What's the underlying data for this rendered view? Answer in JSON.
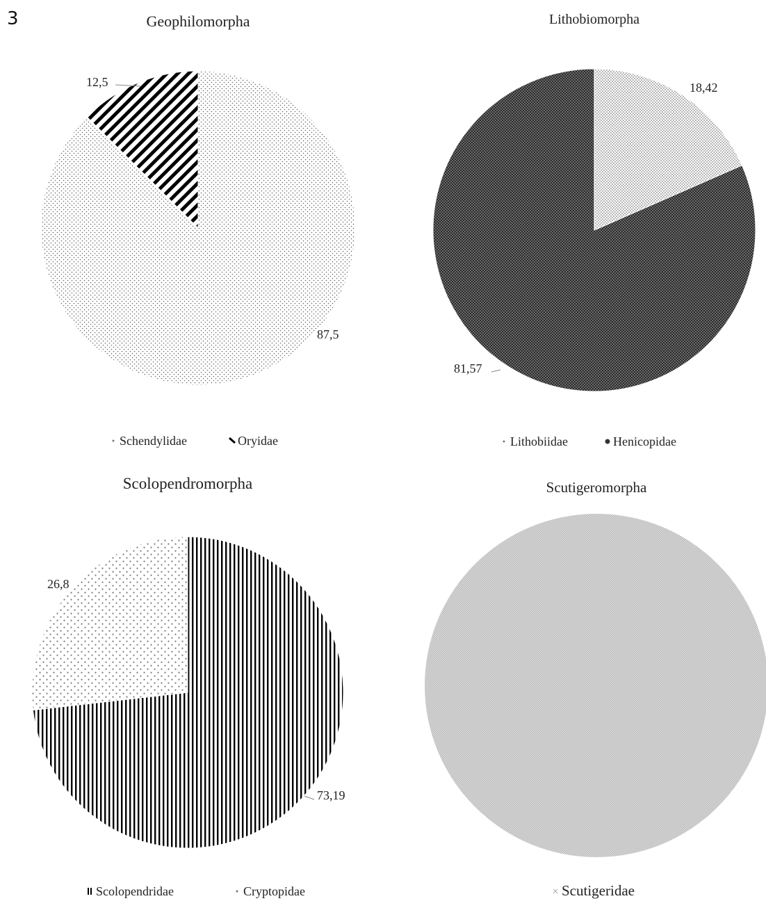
{
  "figure": {
    "panel_label": "3"
  },
  "chart_data": [
    {
      "type": "pie",
      "title": "Geophilomorpha",
      "slices": [
        {
          "label": "Schendylidae",
          "value": 87.5,
          "data_label": "87,5",
          "pattern": "dots-sparse"
        },
        {
          "label": "Oryidae",
          "value": 12.5,
          "data_label": "12,5",
          "pattern": "diagonal-thick"
        }
      ],
      "legend": [
        "Schendylidae",
        "Oryidae"
      ],
      "legend_position": "bottom"
    },
    {
      "type": "pie",
      "title": "Lithobiomorpha",
      "slices": [
        {
          "label": "Lithobiidae",
          "value": 18.42,
          "data_label": "18,42",
          "pattern": "dots-dense"
        },
        {
          "label": "Henicopidae",
          "value": 81.57,
          "data_label": "81,57",
          "pattern": "checker-dark"
        }
      ],
      "legend": [
        "Lithobiidae",
        "Henicopidae"
      ],
      "legend_position": "bottom"
    },
    {
      "type": "pie",
      "title": "Scolopendromorpha",
      "slices": [
        {
          "label": "Scolopendridae",
          "value": 73.19,
          "data_label": "73,19",
          "pattern": "vertical-lines"
        },
        {
          "label": "Cryptopidae",
          "value": 26.8,
          "data_label": "26,8",
          "pattern": "dots-spaced"
        }
      ],
      "legend": [
        "Scolopendridae",
        "Cryptopidae"
      ],
      "legend_position": "bottom"
    },
    {
      "type": "pie",
      "title": "Scutigeromorpha",
      "slices": [
        {
          "label": "Scutigeridae",
          "value": 100,
          "data_label": "",
          "pattern": "fine-grey"
        }
      ],
      "legend": [
        "Scutigeridae"
      ],
      "legend_position": "bottom"
    }
  ]
}
